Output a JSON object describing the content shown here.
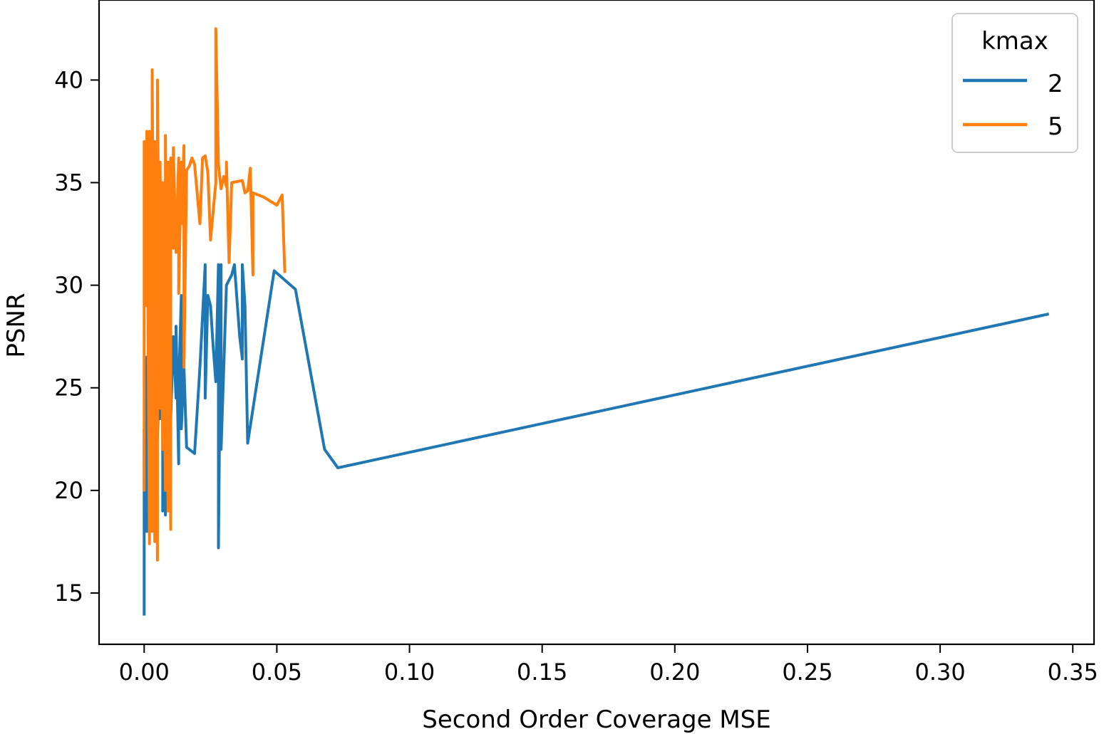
{
  "chart_data": {
    "type": "line",
    "title": "",
    "xlabel": "Second Order Coverage MSE",
    "ylabel": "PSNR",
    "xlim": [
      -0.017,
      0.358
    ],
    "ylim": [
      12.5,
      43.9
    ],
    "xticks": [
      0.0,
      0.05,
      0.1,
      0.15,
      0.2,
      0.25,
      0.3,
      0.35
    ],
    "xtick_labels": [
      "0.00",
      "0.05",
      "0.10",
      "0.15",
      "0.20",
      "0.25",
      "0.30",
      "0.35"
    ],
    "yticks": [
      15,
      20,
      25,
      30,
      35,
      40
    ],
    "ytick_labels": [
      "15",
      "20",
      "25",
      "30",
      "35",
      "40"
    ],
    "grid": false,
    "legend": {
      "title": "kmax",
      "placement": "top-right"
    },
    "series": [
      {
        "name": "2",
        "color": "#1f77b4",
        "points": [
          [
            0.0,
            13.9
          ],
          [
            0.0,
            23.0
          ],
          [
            0.0,
            19.5
          ],
          [
            0.001,
            26.5
          ],
          [
            0.001,
            18.0
          ],
          [
            0.002,
            25.0
          ],
          [
            0.002,
            21.0
          ],
          [
            0.003,
            27.5
          ],
          [
            0.003,
            22.0
          ],
          [
            0.004,
            29.0
          ],
          [
            0.004,
            23.0
          ],
          [
            0.005,
            26.0
          ],
          [
            0.005,
            22.5
          ],
          [
            0.006,
            27.0
          ],
          [
            0.006,
            23.5
          ],
          [
            0.007,
            25.5
          ],
          [
            0.007,
            19.0
          ],
          [
            0.008,
            24.0
          ],
          [
            0.008,
            18.8
          ],
          [
            0.009,
            23.0
          ],
          [
            0.01,
            25.0
          ],
          [
            0.01,
            23.5
          ],
          [
            0.011,
            27.5
          ],
          [
            0.012,
            24.5
          ],
          [
            0.012,
            28.0
          ],
          [
            0.013,
            21.3
          ],
          [
            0.013,
            25.0
          ],
          [
            0.014,
            29.5
          ],
          [
            0.014,
            23.0
          ],
          [
            0.015,
            26.0
          ],
          [
            0.016,
            22.1
          ],
          [
            0.019,
            21.8
          ],
          [
            0.021,
            26.0
          ],
          [
            0.023,
            31.0
          ],
          [
            0.023,
            24.5
          ],
          [
            0.024,
            29.5
          ],
          [
            0.025,
            29.0
          ],
          [
            0.026,
            27.0
          ],
          [
            0.027,
            25.3
          ],
          [
            0.028,
            31.0
          ],
          [
            0.028,
            17.2
          ],
          [
            0.029,
            31.0
          ],
          [
            0.029,
            22.0
          ],
          [
            0.031,
            30.0
          ],
          [
            0.033,
            30.5
          ],
          [
            0.034,
            31.0
          ],
          [
            0.036,
            27.5
          ],
          [
            0.037,
            26.4
          ],
          [
            0.037,
            31.0
          ],
          [
            0.038,
            29.0
          ],
          [
            0.039,
            22.3
          ],
          [
            0.049,
            30.7
          ],
          [
            0.057,
            29.8
          ],
          [
            0.068,
            22.0
          ],
          [
            0.073,
            21.1
          ],
          [
            0.341,
            28.6
          ]
        ]
      },
      {
        "name": "5",
        "color": "#ff7f0e",
        "points": [
          [
            0.0,
            34.5
          ],
          [
            0.0,
            20.0
          ],
          [
            0.0,
            37.0
          ],
          [
            0.001,
            29.0
          ],
          [
            0.001,
            37.5
          ],
          [
            0.002,
            17.4
          ],
          [
            0.002,
            37.5
          ],
          [
            0.003,
            18.0
          ],
          [
            0.003,
            40.5
          ],
          [
            0.004,
            17.5
          ],
          [
            0.004,
            37.0
          ],
          [
            0.005,
            16.6
          ],
          [
            0.005,
            40.0
          ],
          [
            0.006,
            24.0
          ],
          [
            0.006,
            36.0
          ],
          [
            0.007,
            22.0
          ],
          [
            0.007,
            35.0
          ],
          [
            0.008,
            20.0
          ],
          [
            0.008,
            37.3
          ],
          [
            0.009,
            19.0
          ],
          [
            0.009,
            36.0
          ],
          [
            0.01,
            18.1
          ],
          [
            0.01,
            36.2
          ],
          [
            0.011,
            31.8
          ],
          [
            0.011,
            36.7
          ],
          [
            0.012,
            31.6
          ],
          [
            0.013,
            36.2
          ],
          [
            0.013,
            29.6
          ],
          [
            0.014,
            36.0
          ],
          [
            0.014,
            33.0
          ],
          [
            0.015,
            36.8
          ],
          [
            0.015,
            26.0
          ],
          [
            0.016,
            35.6
          ],
          [
            0.017,
            35.8
          ],
          [
            0.018,
            36.2
          ],
          [
            0.019,
            35.9
          ],
          [
            0.021,
            33.0
          ],
          [
            0.022,
            36.2
          ],
          [
            0.023,
            36.3
          ],
          [
            0.024,
            35.5
          ],
          [
            0.025,
            32.2
          ],
          [
            0.027,
            35.0
          ],
          [
            0.027,
            42.5
          ],
          [
            0.028,
            35.9
          ],
          [
            0.029,
            34.7
          ],
          [
            0.03,
            35.3
          ],
          [
            0.031,
            34.8
          ],
          [
            0.031,
            36.0
          ],
          [
            0.032,
            31.1
          ],
          [
            0.033,
            35.0
          ],
          [
            0.037,
            35.1
          ],
          [
            0.038,
            34.5
          ],
          [
            0.039,
            34.6
          ],
          [
            0.04,
            35.7
          ],
          [
            0.041,
            30.5
          ],
          [
            0.041,
            34.5
          ],
          [
            0.045,
            34.3
          ],
          [
            0.05,
            33.9
          ],
          [
            0.052,
            34.4
          ],
          [
            0.053,
            30.6
          ]
        ]
      }
    ]
  }
}
